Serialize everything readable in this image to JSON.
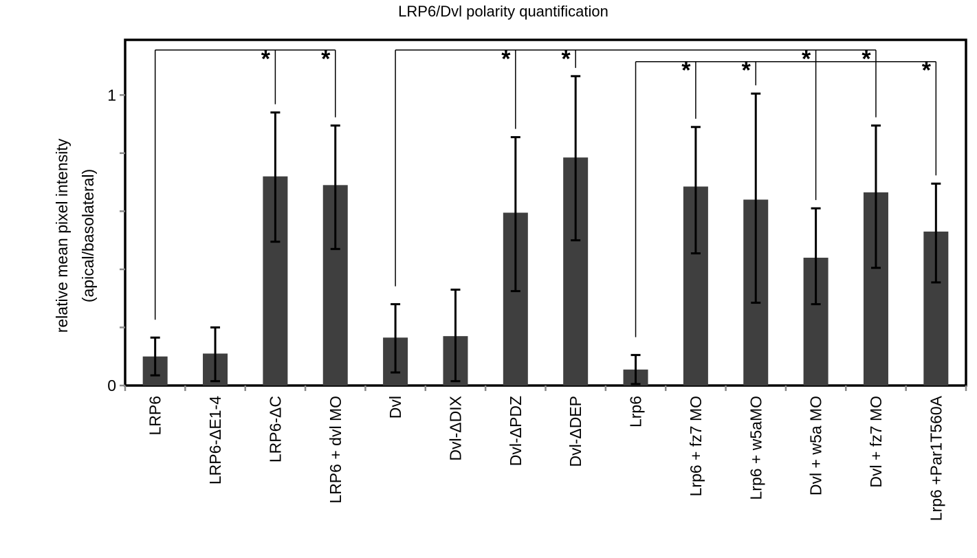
{
  "chart_data": {
    "type": "bar",
    "title": "LRP6/Dvl polarity quantification",
    "ylabel_lines": [
      "relative mean pixel intensity",
      "(apical/basolateral)"
    ],
    "ylim": [
      0,
      1.19
    ],
    "yticks": [
      0,
      1
    ],
    "ytick_labels": [
      "0",
      "1"
    ],
    "grid": false,
    "legend": "none",
    "bar_color": "#3f3f3f",
    "categories": [
      "LRP6",
      "LRP6-ΔE1-4",
      "LRP6-ΔC",
      "LRP6 + dvl MO",
      "Dvl",
      "Dvl-ΔDIX",
      "Dvl-ΔPDZ",
      "Dvl-ΔDEP",
      "Lrp6",
      "Lrp6 + fz7 MO",
      "Lrp6 + w5aMO",
      "Dvl + w5a MO",
      "Dvl + fz7 MO",
      "Lrp6 +Par1T560A"
    ],
    "values": [
      0.1,
      0.11,
      0.72,
      0.69,
      0.165,
      0.17,
      0.595,
      0.785,
      0.055,
      0.685,
      0.64,
      0.44,
      0.665,
      0.53
    ],
    "error_bars": [
      [
        0.035,
        0.165
      ],
      [
        0.015,
        0.2
      ],
      [
        0.495,
        0.94
      ],
      [
        0.47,
        0.895
      ],
      [
        0.045,
        0.28
      ],
      [
        0.015,
        0.33
      ],
      [
        0.325,
        0.855
      ],
      [
        0.5,
        1.065
      ],
      [
        0.005,
        0.105
      ],
      [
        0.455,
        0.89
      ],
      [
        0.285,
        1.005
      ],
      [
        0.28,
        0.61
      ],
      [
        0.405,
        0.895
      ],
      [
        0.355,
        0.695
      ]
    ],
    "significance_marker": "*",
    "comparisons": [
      {
        "from": 0,
        "to": 2,
        "bracket_y": 1.155
      },
      {
        "from": 0,
        "to": 3,
        "bracket_y": 1.155
      },
      {
        "from": 4,
        "to": 6,
        "bracket_y": 1.155
      },
      {
        "from": 4,
        "to": 7,
        "bracket_y": 1.155
      },
      {
        "from": 4,
        "to": 11,
        "bracket_y": 1.155
      },
      {
        "from": 4,
        "to": 12,
        "bracket_y": 1.155
      },
      {
        "from": 8,
        "to": 9,
        "bracket_y": 1.115
      },
      {
        "from": 8,
        "to": 10,
        "bracket_y": 1.115
      },
      {
        "from": 8,
        "to": 13,
        "bracket_y": 1.115
      }
    ]
  }
}
